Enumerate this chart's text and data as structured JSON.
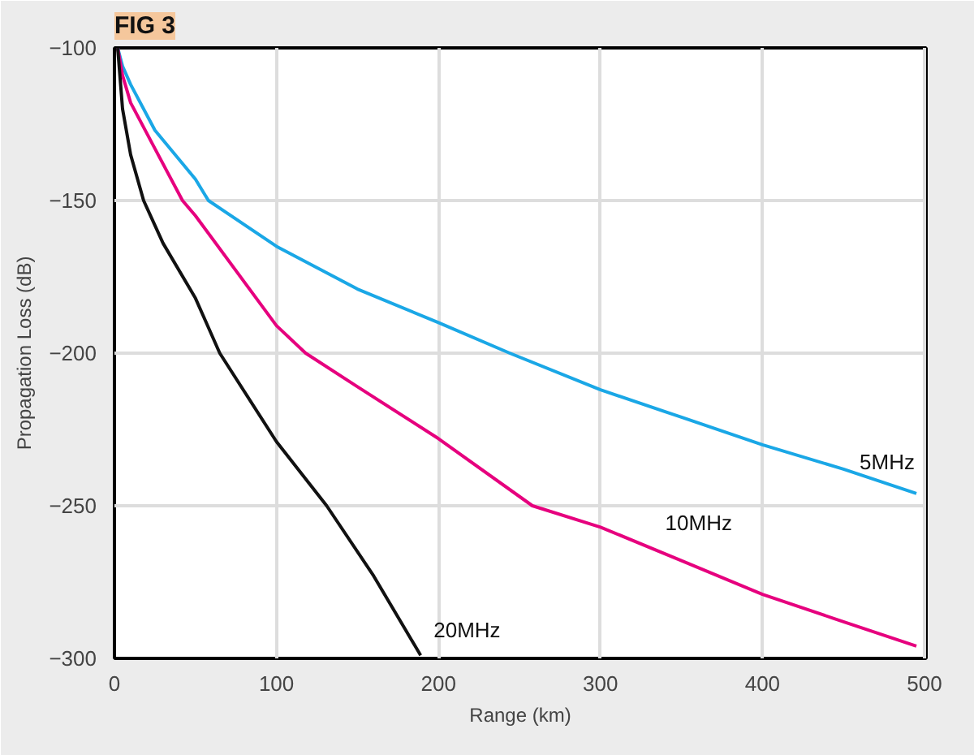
{
  "chart_data": {
    "type": "line",
    "title": "FIG 3",
    "xlabel": "Range (km)",
    "ylabel": "Propagation Loss (dB)",
    "xlim": [
      0,
      501
    ],
    "ylim": [
      -300,
      -100
    ],
    "xticks": [
      0,
      100,
      200,
      300,
      400,
      500
    ],
    "yticks": [
      -100,
      -150,
      -200,
      -250,
      -300
    ],
    "grid": true,
    "series": [
      {
        "name": "5MHz",
        "color": "#1aa7e6",
        "x": [
          2,
          5,
          10,
          25,
          50,
          58,
          100,
          150,
          200,
          244,
          300,
          350,
          400,
          450,
          495
        ],
        "values": [
          -100,
          -106,
          -112,
          -127,
          -143,
          -150,
          -165,
          -179,
          -190,
          -200,
          -212,
          -221,
          -230,
          -238,
          -246
        ]
      },
      {
        "name": "10MHz",
        "color": "#e6007e",
        "x": [
          2,
          5,
          10,
          25,
          42,
          50,
          100,
          118,
          150,
          200,
          258,
          300,
          350,
          400,
          450,
          495
        ],
        "values": [
          -100,
          -109,
          -118,
          -133,
          -150,
          -155,
          -191,
          -200,
          -211,
          -228,
          -250,
          -257,
          -268,
          -279,
          -288,
          -296
        ]
      },
      {
        "name": "20MHz",
        "color": "#111111",
        "x": [
          2,
          5,
          10,
          18,
          30,
          50,
          65,
          100,
          131,
          160,
          189
        ],
        "values": [
          -100,
          -120,
          -135,
          -150,
          -164,
          -182,
          -200,
          -229,
          -250,
          -273,
          -299
        ]
      }
    ]
  }
}
